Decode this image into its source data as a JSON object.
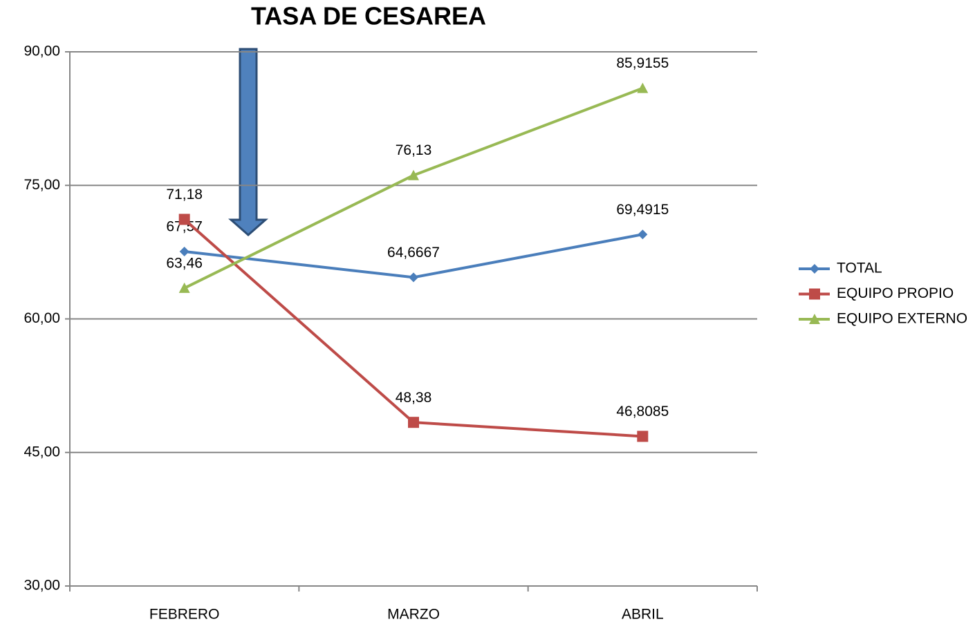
{
  "chart_data": {
    "type": "line",
    "title": "TASA DE CESAREA",
    "categories": [
      "FEBRERO",
      "MARZO",
      "ABRIL"
    ],
    "series": [
      {
        "name": "TOTAL",
        "color": "#4a7ebb",
        "marker": "diamond",
        "values": [
          67.57,
          64.6667,
          69.4915
        ],
        "value_labels": [
          "67,57",
          "64,6667",
          "69,4915"
        ]
      },
      {
        "name": "EQUIPO PROPIO",
        "color": "#be4b48",
        "marker": "square",
        "values": [
          71.18,
          48.38,
          46.8085
        ],
        "value_labels": [
          "71,18",
          "48,38",
          "46,8085"
        ]
      },
      {
        "name": "EQUIPO EXTERNO",
        "color": "#98b954",
        "marker": "triangle",
        "values": [
          63.46,
          76.13,
          85.9155
        ],
        "value_labels": [
          "63,46",
          "76,13",
          "85,9155"
        ]
      }
    ],
    "ylim": [
      30,
      90
    ],
    "yticks": [
      {
        "value": 30,
        "label": "30,00"
      },
      {
        "value": 45,
        "label": "45,00"
      },
      {
        "value": 60,
        "label": "60,00"
      },
      {
        "value": 75,
        "label": "75,00"
      },
      {
        "value": 90,
        "label": "90,00"
      }
    ],
    "grid": true,
    "legend": "right"
  }
}
